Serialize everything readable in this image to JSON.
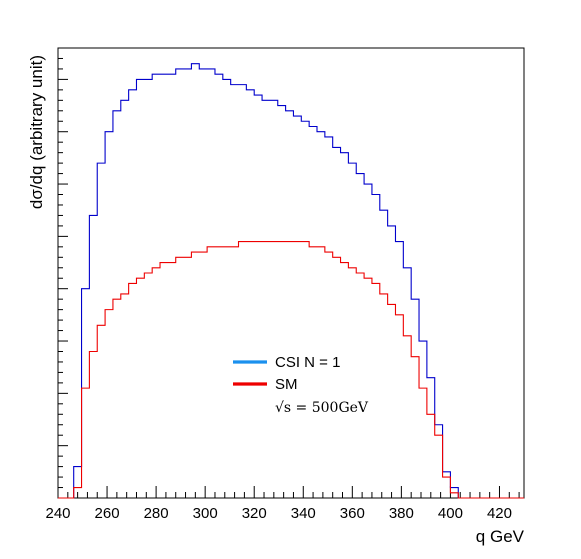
{
  "chart_data": {
    "type": "line",
    "title": "",
    "xlabel": "q GeV",
    "ylabel": "dσ/dq (arbitrary unit)",
    "xlim": [
      240,
      430
    ],
    "ylim": [
      0,
      0.86
    ],
    "x_ticks": [
      "240",
      "260",
      "280",
      "300",
      "320",
      "340",
      "360",
      "380",
      "400",
      "420"
    ],
    "x_tick_values": [
      240,
      260,
      280,
      300,
      320,
      340,
      360,
      380,
      400,
      420
    ],
    "y_tick_labels_shown": false,
    "grid": false,
    "bin_width": 3.2,
    "bins": [
      240.0,
      243.2,
      246.4,
      249.6,
      252.8,
      256.0,
      259.2,
      262.4,
      265.6,
      268.8,
      272.0,
      275.2,
      278.4,
      281.6,
      284.8,
      288.0,
      291.2,
      294.4,
      297.6,
      300.8,
      304.0,
      307.2,
      310.4,
      313.6,
      316.8,
      320.0,
      323.2,
      326.4,
      329.6,
      332.8,
      336.0,
      339.2,
      342.4,
      345.6,
      348.8,
      352.0,
      355.2,
      358.4,
      361.6,
      364.8,
      368.0,
      371.2,
      374.4,
      377.6,
      380.8,
      384.0,
      387.2,
      390.4,
      393.6,
      396.8,
      400.0,
      403.2,
      406.4,
      409.6,
      412.8,
      416.0,
      419.2,
      422.4,
      425.6,
      428.8
    ],
    "series": [
      {
        "name": "CSI N = 1",
        "color": "#0000cc",
        "values": [
          0,
          0,
          0.06,
          0.4,
          0.54,
          0.64,
          0.7,
          0.74,
          0.76,
          0.78,
          0.8,
          0.8,
          0.81,
          0.81,
          0.81,
          0.82,
          0.82,
          0.83,
          0.82,
          0.82,
          0.81,
          0.8,
          0.79,
          0.79,
          0.78,
          0.77,
          0.76,
          0.76,
          0.75,
          0.74,
          0.73,
          0.72,
          0.71,
          0.7,
          0.69,
          0.67,
          0.66,
          0.64,
          0.62,
          0.6,
          0.58,
          0.55,
          0.52,
          0.49,
          0.44,
          0.38,
          0.3,
          0.23,
          0.14,
          0.05,
          0.02,
          0,
          0,
          0,
          0,
          0,
          0,
          0,
          0,
          0
        ]
      },
      {
        "name": "SM",
        "color": "#ee0000",
        "values": [
          0,
          0,
          0.02,
          0.21,
          0.28,
          0.33,
          0.36,
          0.38,
          0.39,
          0.41,
          0.42,
          0.43,
          0.44,
          0.45,
          0.45,
          0.46,
          0.46,
          0.47,
          0.47,
          0.48,
          0.48,
          0.48,
          0.48,
          0.49,
          0.49,
          0.49,
          0.49,
          0.49,
          0.49,
          0.49,
          0.49,
          0.49,
          0.48,
          0.48,
          0.47,
          0.46,
          0.45,
          0.44,
          0.43,
          0.42,
          0.41,
          0.39,
          0.37,
          0.35,
          0.31,
          0.27,
          0.21,
          0.16,
          0.12,
          0.04,
          0.01,
          0,
          0,
          0,
          0,
          0,
          0,
          0,
          0,
          0
        ]
      }
    ],
    "legend": {
      "placement": "center",
      "entries": [
        {
          "label": "CSI N = 1",
          "color": "#1a90ee"
        },
        {
          "label": "SM",
          "color": "#ee0000"
        }
      ],
      "note": "√s = 500GeV"
    }
  }
}
